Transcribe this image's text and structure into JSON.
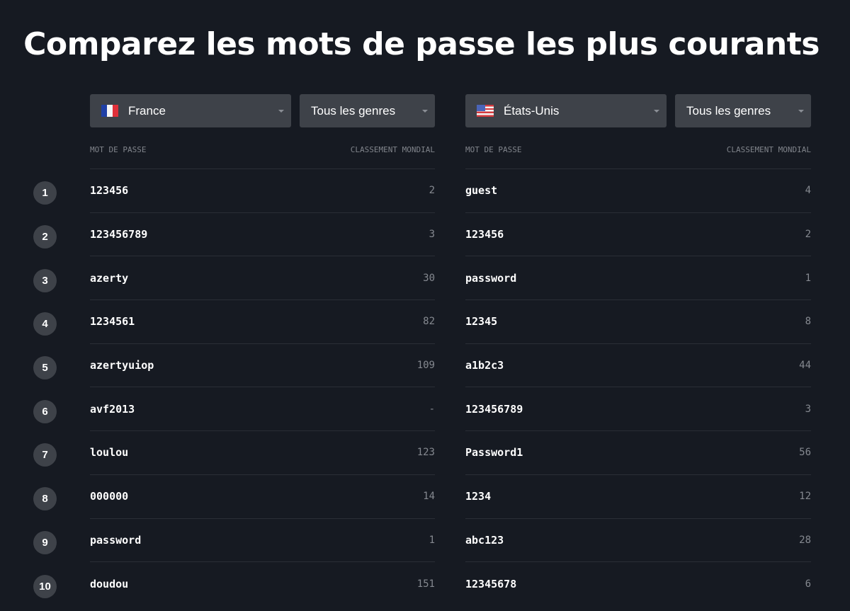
{
  "title": "Comparez les mots de passe les plus courants",
  "positions": [
    "1",
    "2",
    "3",
    "4",
    "5",
    "6",
    "7",
    "8",
    "9",
    "10"
  ],
  "left": {
    "country": "France",
    "flag": "france-flag-icon",
    "genre": "Tous les genres",
    "col_password": "MOT DE PASSE",
    "col_rank": "CLASSEMENT MONDIAL",
    "rows": [
      {
        "password": "123456",
        "rank": "2"
      },
      {
        "password": "123456789",
        "rank": "3"
      },
      {
        "password": "azerty",
        "rank": "30"
      },
      {
        "password": "1234561",
        "rank": "82"
      },
      {
        "password": "azertyuiop",
        "rank": "109"
      },
      {
        "password": "avf2013",
        "rank": "-"
      },
      {
        "password": "loulou",
        "rank": "123"
      },
      {
        "password": "000000",
        "rank": "14"
      },
      {
        "password": "password",
        "rank": "1"
      },
      {
        "password": "doudou",
        "rank": "151"
      }
    ]
  },
  "right": {
    "country": "États-Unis",
    "flag": "usa-flag-icon",
    "genre": "Tous les genres",
    "col_password": "MOT DE PASSE",
    "col_rank": "CLASSEMENT MONDIAL",
    "rows": [
      {
        "password": "guest",
        "rank": "4"
      },
      {
        "password": "123456",
        "rank": "2"
      },
      {
        "password": "password",
        "rank": "1"
      },
      {
        "password": "12345",
        "rank": "8"
      },
      {
        "password": "a1b2c3",
        "rank": "44"
      },
      {
        "password": "123456789",
        "rank": "3"
      },
      {
        "password": "Password1",
        "rank": "56"
      },
      {
        "password": "1234",
        "rank": "12"
      },
      {
        "password": "abc123",
        "rank": "28"
      },
      {
        "password": "12345678",
        "rank": "6"
      }
    ]
  }
}
